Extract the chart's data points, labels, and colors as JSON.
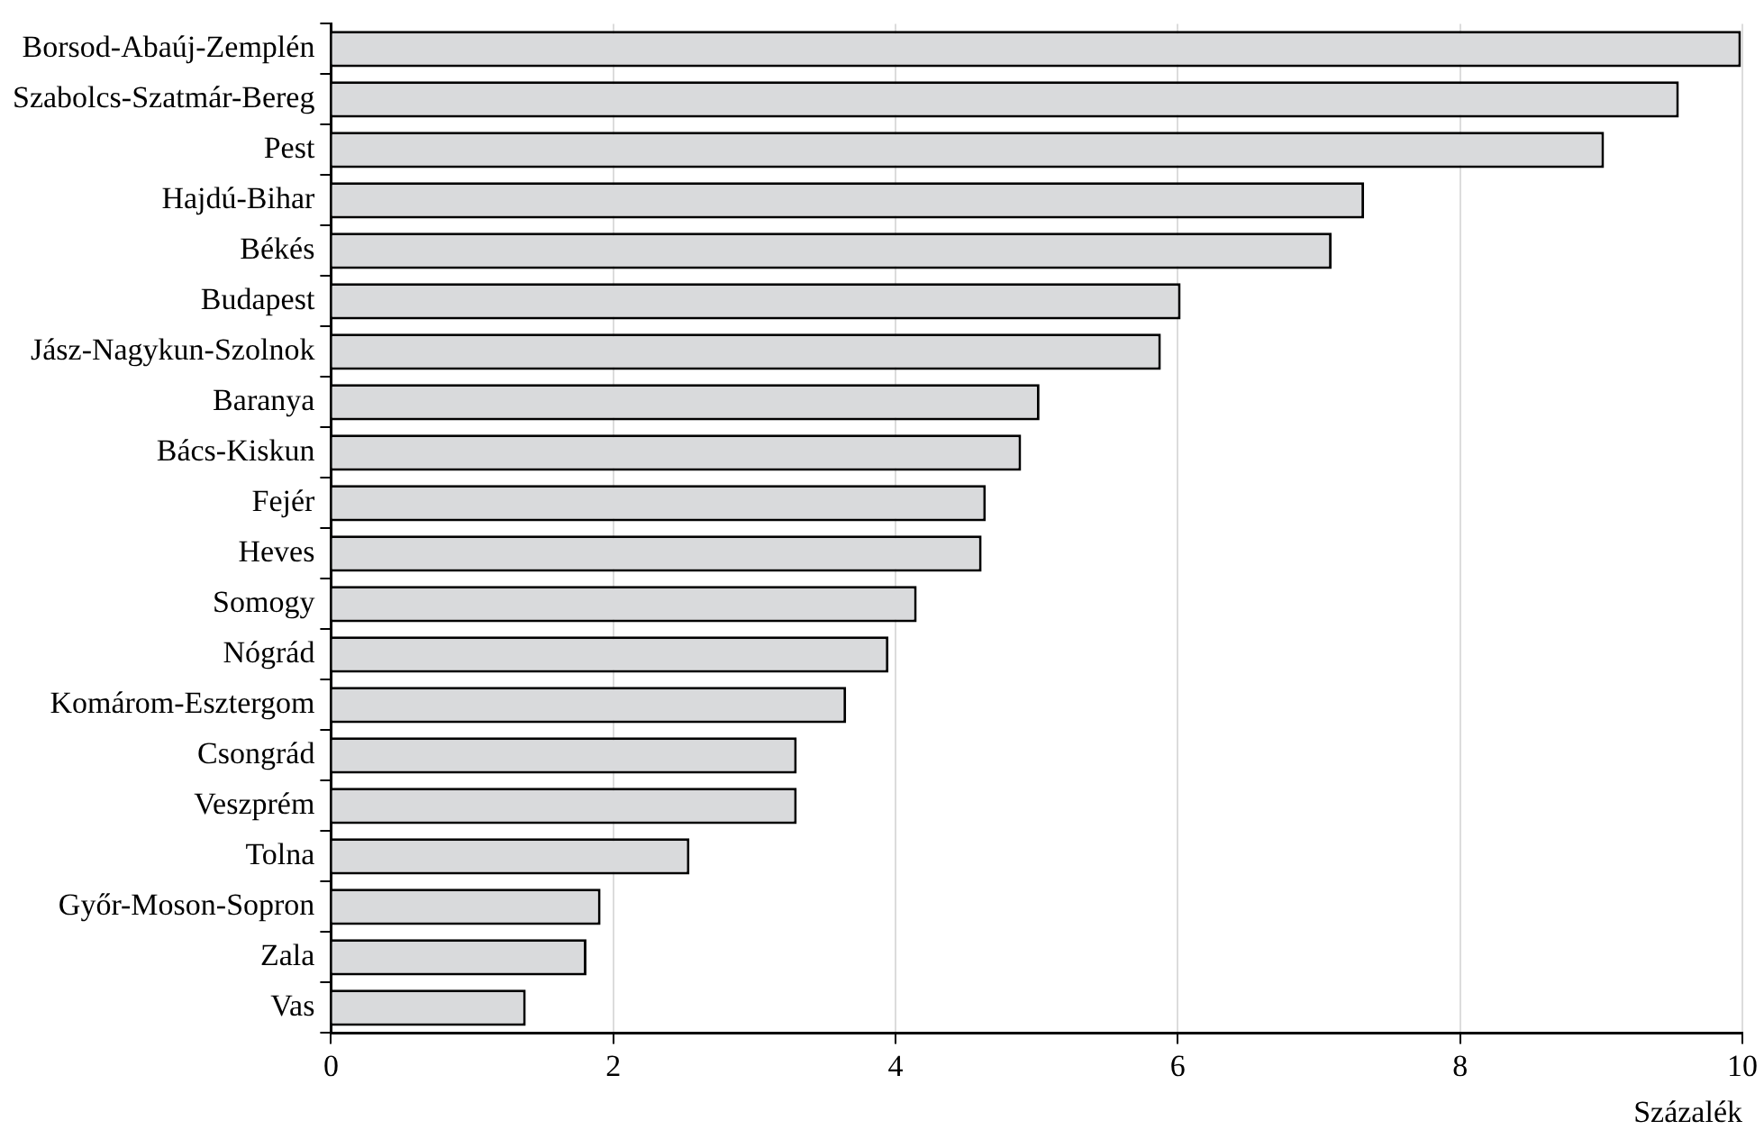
{
  "chart_data": {
    "type": "bar",
    "orientation": "horizontal",
    "xlabel": "Százalék",
    "categories": [
      "Borsod-Abaúj-Zemplén",
      "Szabolcs-Szatmár-Bereg",
      "Pest",
      "Hajdú-Bihar",
      "Békés",
      "Budapest",
      "Jász-Nagykun-Szolnok",
      "Baranya",
      "Bács-Kiskun",
      "Fejér",
      "Heves",
      "Somogy",
      "Nógrád",
      "Komárom-Esztergom",
      "Csongrád",
      "Veszprém",
      "Tolna",
      "Győr-Moson-Sopron",
      "Zala",
      "Vas"
    ],
    "values": [
      9.99,
      9.55,
      9.02,
      7.32,
      7.09,
      6.02,
      5.88,
      5.02,
      4.89,
      4.64,
      4.61,
      4.15,
      3.95,
      3.65,
      3.3,
      3.3,
      2.54,
      1.91,
      1.81,
      1.38
    ],
    "color": "#d9dadc",
    "xlim": [
      0,
      10
    ],
    "xticks": [
      0,
      2,
      4,
      6,
      8,
      10
    ],
    "grid": "x"
  }
}
